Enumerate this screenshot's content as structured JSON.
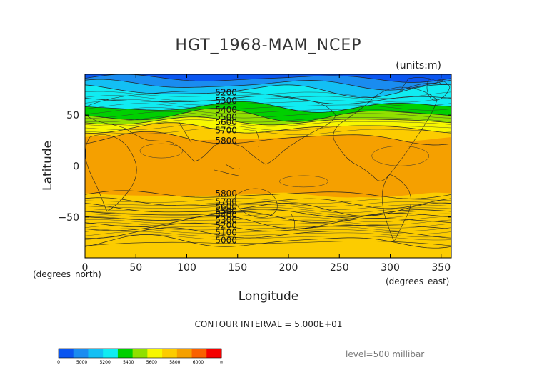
{
  "chart_data": {
    "type": "heatmap",
    "title": "HGT_1968-MAM_NCEP",
    "units": "(units:m)",
    "xlabel": "Longitude",
    "ylabel": "Latitude",
    "x_unit_label": "(degrees_east)",
    "y_unit_label": "(degrees_north)",
    "xlim": [
      0,
      360
    ],
    "ylim": [
      -90,
      90
    ],
    "x_ticks": [
      0,
      50,
      100,
      150,
      200,
      250,
      300,
      350
    ],
    "y_ticks": [
      50,
      0,
      -50
    ],
    "contour_interval_text": "CONTOUR INTERVAL = 5.000E+01",
    "level_text": "level=500 millibar",
    "colorbar": {
      "labels": [
        "0",
        "5000",
        "5200",
        "5400",
        "5600",
        "5800",
        "6000",
        "∞"
      ],
      "colors": [
        "#0a55f0",
        "#1a8cf0",
        "#13bff4",
        "#10ecf2",
        "#00d000",
        "#90e000",
        "#f7f700",
        "#fccc00",
        "#f5a000",
        "#fa6000",
        "#f50000"
      ]
    },
    "contour_labels": [
      {
        "text": "5200",
        "lat": 72
      },
      {
        "text": "5300",
        "lat": 64
      },
      {
        "text": "5400",
        "lat": 55
      },
      {
        "text": "5500",
        "lat": 48
      },
      {
        "text": "5600",
        "lat": 43
      },
      {
        "text": "5700",
        "lat": 35
      },
      {
        "text": "5800",
        "lat": 25
      },
      {
        "text": "5800",
        "lat": -27
      },
      {
        "text": "5700",
        "lat": -35
      },
      {
        "text": "5600",
        "lat": -40
      },
      {
        "text": "5500",
        "lat": -44
      },
      {
        "text": "5400",
        "lat": -48
      },
      {
        "text": "5300",
        "lat": -53
      },
      {
        "text": "5200",
        "lat": -58
      },
      {
        "text": "5100",
        "lat": -65
      },
      {
        "text": "5000",
        "lat": -73
      }
    ],
    "contour_label_lon": 128,
    "contours_north": [
      {
        "value": 5000,
        "lat": 86
      },
      {
        "value": 5100,
        "lat": 80
      },
      {
        "value": 5200,
        "lat": 74
      },
      {
        "value": 5300,
        "lat": 65
      },
      {
        "value": 5400,
        "lat": 58
      },
      {
        "value": 5500,
        "lat": 50
      },
      {
        "value": 5600,
        "lat": 44
      },
      {
        "value": 5700,
        "lat": 37
      },
      {
        "value": 5800,
        "lat": 27
      }
    ],
    "contours_south": [
      {
        "value": 5800,
        "lat": -28
      },
      {
        "value": 5700,
        "lat": -36
      },
      {
        "value": 5600,
        "lat": -42
      },
      {
        "value": 5500,
        "lat": -46
      },
      {
        "value": 5400,
        "lat": -50
      },
      {
        "value": 5300,
        "lat": -55
      },
      {
        "value": 5200,
        "lat": -60
      },
      {
        "value": 5100,
        "lat": -66
      },
      {
        "value": 5000,
        "lat": -74
      }
    ]
  }
}
